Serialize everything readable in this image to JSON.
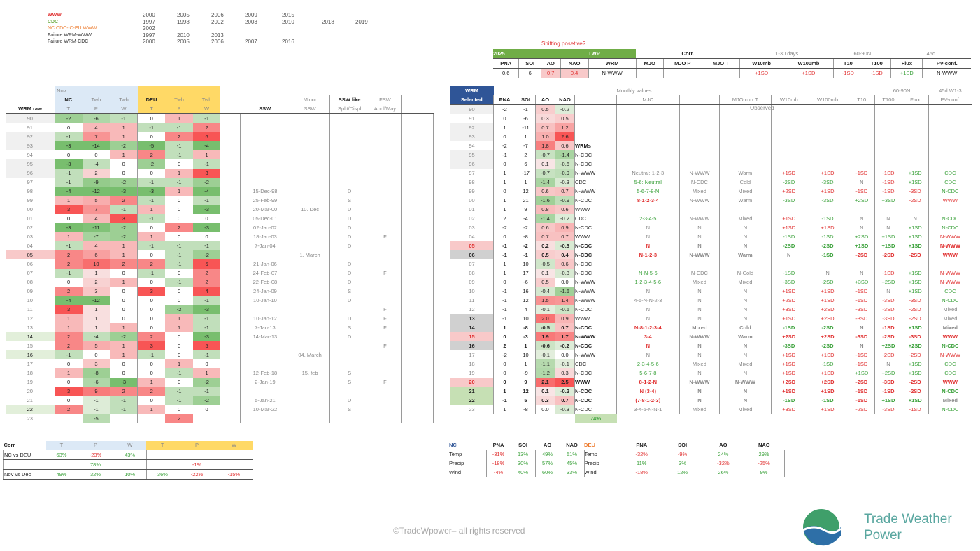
{
  "legend": {
    "rows": [
      {
        "label": "WWW",
        "color": "#e03030",
        "years": [
          "2000",
          "2005",
          "2006",
          "2009",
          "2015",
          "",
          ""
        ]
      },
      {
        "label": "CDC",
        "color": "#70ad47",
        "years": [
          "1997",
          "1998",
          "2002",
          "2003",
          "2010",
          "2018",
          "2019"
        ]
      },
      {
        "label": "NC CDC- C-EU WWW",
        "color": "#ed7d31",
        "years": [
          "2002",
          "",
          "",
          "",
          "",
          "",
          ""
        ]
      },
      {
        "label": "Failure WRM-WWW",
        "color": "#333333",
        "years": [
          "1997",
          "2010",
          "2013",
          "",
          "",
          "",
          ""
        ]
      },
      {
        "label": "Failure WRM-CDC",
        "color": "#333333",
        "years": [
          "2000",
          "2005",
          "2006",
          "2007",
          "2016",
          "",
          ""
        ]
      }
    ]
  },
  "shifting": "Shifting posetive?",
  "summary": {
    "year": "2025",
    "twp": "TWP",
    "corr": "Corr.",
    "days": "1-30 days",
    "lat": "60-90N",
    "d45": "45d",
    "headers": [
      "PNA",
      "SOI",
      "AO",
      "NAO",
      "WRM",
      "MJO",
      "MJO P",
      "MJO T",
      "W10mb",
      "W100mb",
      "T10",
      "T100",
      "Flux",
      "PV-conf."
    ],
    "values": [
      "0.6",
      "6",
      "0.7",
      "0.4",
      "N-WWW",
      "",
      "",
      "",
      "+1SD",
      "+1SD",
      "-1SD",
      "-1SD",
      "+1SD",
      "N-WWW"
    ]
  },
  "left": {
    "group_nov": "Nov",
    "headers": {
      "wrm_raw": "WRM raw",
      "nc": "NC",
      "twh": "Twh",
      "deu": "DEU",
      "t": "T",
      "p": "P",
      "w": "W",
      "ssw": "SSW",
      "minor": "Minor",
      "minor2": "SSW",
      "sswlike": "SSW like",
      "sswlike2": "Split/Displ",
      "fsw": "FSW",
      "fsw2": "April/May"
    },
    "rows": [
      [
        "90",
        "-2",
        "-6",
        "-1",
        "0",
        "1",
        "-1",
        "",
        "",
        "",
        ""
      ],
      [
        "91",
        "0",
        "4",
        "1",
        "-1",
        "-1",
        "2",
        "",
        "",
        "",
        ""
      ],
      [
        "92",
        "-1",
        "7",
        "1",
        "0",
        "2",
        "6",
        "",
        "",
        "",
        ""
      ],
      [
        "93",
        "-3",
        "-14",
        "-2",
        "-5",
        "-1",
        "-4",
        "",
        "",
        "",
        ""
      ],
      [
        "94",
        "0",
        "0",
        "1",
        "2",
        "-1",
        "1",
        "",
        "",
        "",
        ""
      ],
      [
        "95",
        "-3",
        "-4",
        "0",
        "-2",
        "0",
        "-1",
        "",
        "",
        "",
        ""
      ],
      [
        "96",
        "-1",
        "2",
        "0",
        "0",
        "1",
        "3",
        "",
        "",
        "",
        ""
      ],
      [
        "97",
        "-1",
        "-9",
        "-2",
        "-1",
        "-1",
        "-2",
        "",
        "",
        "",
        ""
      ],
      [
        "98",
        "-4",
        "-12",
        "-3",
        "-3",
        "1",
        "-4",
        "15-Dec-98",
        "",
        "D",
        ""
      ],
      [
        "99",
        "1",
        "5",
        "2",
        "-1",
        "0",
        "-1",
        "25-Feb-99",
        "",
        "S",
        ""
      ],
      [
        "00",
        "3",
        "7",
        "-1",
        "1",
        "0",
        "-3",
        "20-Mar-00",
        "10. Dec",
        "D",
        ""
      ],
      [
        "01",
        "0",
        "4",
        "3",
        "-1",
        "0",
        "0",
        "05-Dec-01",
        "",
        "D",
        ""
      ],
      [
        "02",
        "-3",
        "-11",
        "-2",
        "0",
        "2",
        "-3",
        "02-Jan-02",
        "",
        "D",
        ""
      ],
      [
        "03",
        "1",
        "-7",
        "-2",
        "1",
        "0",
        "0",
        "18-Jan-03",
        "",
        "D",
        "F"
      ],
      [
        "04",
        "-1",
        "4",
        "1",
        "-1",
        "-1",
        "-1",
        "7-Jan-04",
        "",
        "D",
        ""
      ],
      [
        "05",
        "2",
        "6",
        "1",
        "0",
        "-1",
        "-2",
        "",
        "1. March",
        "",
        ""
      ],
      [
        "06",
        "2",
        "10",
        "2",
        "2",
        "-1",
        "5",
        "21-Jan-06",
        "",
        "D",
        ""
      ],
      [
        "07",
        "-1",
        "1",
        "0",
        "-1",
        "0",
        "2",
        "24-Feb-07",
        "",
        "D",
        "F"
      ],
      [
        "08",
        "0",
        "2",
        "1",
        "0",
        "-1",
        "2",
        "22-Feb-08",
        "",
        "D",
        ""
      ],
      [
        "09",
        "2",
        "3",
        "0",
        "3",
        "0",
        "4",
        "24-Jan-09",
        "",
        "S",
        ""
      ],
      [
        "10",
        "-4",
        "-12",
        "0",
        "0",
        "0",
        "-1",
        "10-Jan-10",
        "",
        "D",
        ""
      ],
      [
        "11",
        "3",
        "1",
        "0",
        "0",
        "-2",
        "-3",
        "",
        "",
        "",
        "F"
      ],
      [
        "12",
        "1",
        "1",
        "0",
        "0",
        "1",
        "-1",
        "10-Jan-12",
        "",
        "D",
        "F"
      ],
      [
        "13",
        "1",
        "1",
        "1",
        "0",
        "1",
        "-1",
        "7-Jan-13",
        "",
        "S",
        "F"
      ],
      [
        "14",
        "2",
        "-4",
        "-2",
        "2",
        "0",
        "-3",
        "14-Mar-13",
        "",
        "D",
        ""
      ],
      [
        "15",
        "2",
        "5",
        "1",
        "3",
        "0",
        "5",
        "",
        "",
        "",
        "F"
      ],
      [
        "16",
        "-1",
        "0",
        "1",
        "-1",
        "0",
        "-1",
        "",
        "04. March",
        "",
        ""
      ],
      [
        "17",
        "0",
        "3",
        "0",
        "0",
        "1",
        "0",
        "",
        "",
        "",
        ""
      ],
      [
        "18",
        "1",
        "-8",
        "0",
        "0",
        "-1",
        "1",
        "12-Feb-18",
        "15. feb",
        "S",
        ""
      ],
      [
        "19",
        "0",
        "-6",
        "-3",
        "1",
        "0",
        "-2",
        "2-Jan-19",
        "",
        "S",
        "F"
      ],
      [
        "20",
        "3",
        "9",
        "2",
        "2",
        "-1",
        "-1",
        "",
        "",
        "",
        ""
      ],
      [
        "21",
        "0",
        "-1",
        "-1",
        "0",
        "-1",
        "-2",
        "5-Jan-21",
        "",
        "D",
        ""
      ],
      [
        "22",
        "2",
        "-1",
        "-1",
        "1",
        "0",
        "0",
        "10-Mar-22",
        "",
        "S",
        ""
      ],
      [
        "23",
        "",
        "-5",
        "",
        "",
        "2",
        "",
        "",
        "",
        "",
        ""
      ]
    ]
  },
  "right": {
    "headers": {
      "wrm": "WRM",
      "selected": "Selected",
      "pna": "PNA",
      "soi": "SOI",
      "ao": "AO",
      "nao": "NAO",
      "monthly": "Monthly values",
      "mjo": "MJO",
      "mjocorr": "MJO corr T",
      "w10": "W10mb",
      "w100": "W100mb",
      "t10": "T10",
      "t100": "T100",
      "flux": "Flux",
      "pv": "PV-conf.",
      "lat": "60-90N",
      "w13": "45d W1-3",
      "observed": "Observed"
    },
    "wrms_label": "WRMs",
    "pct": "74%",
    "rows": [
      [
        "90",
        "-2",
        "-1",
        "0.5",
        "-0.2",
        "",
        "",
        "",
        "",
        "",
        "",
        "",
        "",
        "",
        "",
        ""
      ],
      [
        "91",
        "0",
        "-6",
        "0.3",
        "0.5",
        "",
        "",
        "",
        "",
        "",
        "",
        "",
        "",
        "",
        "",
        ""
      ],
      [
        "92",
        "1",
        "-11",
        "0.7",
        "1.2",
        "",
        "",
        "",
        "",
        "",
        "",
        "",
        "",
        "",
        "",
        ""
      ],
      [
        "93",
        "0",
        "1",
        "1.0",
        "2.6",
        "",
        "",
        "",
        "",
        "",
        "",
        "",
        "",
        "",
        "",
        ""
      ],
      [
        "94",
        "-2",
        "-7",
        "1.8",
        "0.6",
        "",
        "",
        "",
        "",
        "",
        "",
        "",
        "",
        "",
        "",
        ""
      ],
      [
        "95",
        "-1",
        "2",
        "-0.7",
        "-1.4",
        "N-CDC",
        "",
        "",
        "",
        "",
        "",
        "",
        "",
        "",
        "",
        ""
      ],
      [
        "96",
        "0",
        "6",
        "0.1",
        "-0.6",
        "N-CDC",
        "",
        "",
        "",
        "",
        "",
        "",
        "",
        "",
        "",
        ""
      ],
      [
        "97",
        "1",
        "-17",
        "-0.7",
        "-0.9",
        "N-WWW",
        "Neutral: 1-2-3",
        "N-WWW",
        "Warm",
        "+1SD",
        "+1SD",
        "-1SD",
        "-1SD",
        "+1SD",
        "CDC",
        ""
      ],
      [
        "98",
        "1",
        "1",
        "-1.4",
        "-0.3",
        "CDC",
        "5-6: Neutral",
        "N-CDC",
        "Cold",
        "-2SD",
        "-3SD",
        "N",
        "-1SD",
        "+1SD",
        "CDC",
        ""
      ],
      [
        "99",
        "0",
        "12",
        "0.6",
        "0.7",
        "N-WWW",
        "5-6-7-8-N",
        "Mixed",
        "Mixed",
        "+2SD",
        "+1SD",
        "-1SD",
        "-1SD",
        "-3SD",
        "N-CDC",
        ""
      ],
      [
        "00",
        "1",
        "21",
        "-1.6",
        "-0.9",
        "N-CDC",
        "8-1-2-3-4",
        "N-WWW",
        "Warm",
        "-3SD",
        "-3SD",
        "+2SD",
        "+3SD",
        "-2SD",
        "WWW",
        ""
      ],
      [
        "01",
        "1",
        "9",
        "0.8",
        "0.6",
        "WWW",
        "",
        "",
        "",
        "",
        "",
        "",
        "",
        "",
        "",
        ""
      ],
      [
        "02",
        "2",
        "-4",
        "-1.4",
        "-0.2",
        "CDC",
        "2-3-4-5",
        "N-WWW",
        "Mixed",
        "+1SD",
        "-1SD",
        "N",
        "N",
        "N",
        "N-CDC",
        ""
      ],
      [
        "03",
        "-2",
        "-2",
        "0.6",
        "0.9",
        "N-CDC",
        "N",
        "N",
        "N",
        "+1SD",
        "+1SD",
        "N",
        "N",
        "+1SD",
        "N-CDC",
        ""
      ],
      [
        "04",
        "0",
        "-8",
        "0.7",
        "0.7",
        "WWW",
        "N",
        "N",
        "N",
        "-1SD",
        "-1SD",
        "+2SD",
        "+1SD",
        "+1SD",
        "N-WWW",
        ""
      ],
      [
        "05",
        "-1",
        "-2",
        "0.2",
        "-0.3",
        "N-CDC",
        "N",
        "N",
        "N",
        "-2SD",
        "-2SD",
        "+1SD",
        "+1SD",
        "+1SD",
        "N-WWW",
        ""
      ],
      [
        "06",
        "-1",
        "-1",
        "0.5",
        "0.4",
        "N-CDC",
        "N-1-2-3",
        "N-WWW",
        "Warm",
        "N",
        "-1SD",
        "-2SD",
        "-2SD",
        "-2SD",
        "WWW",
        ""
      ],
      [
        "07",
        "1",
        "10",
        "-0.5",
        "0.6",
        "N-CDC",
        "",
        "",
        "",
        "",
        "",
        "",
        "",
        "",
        "",
        ""
      ],
      [
        "08",
        "1",
        "17",
        "0.1",
        "-0.3",
        "N-CDC",
        "N-N-5-6",
        "N-CDC",
        "N-Cold",
        "-1SD",
        "N",
        "N",
        "-1SD",
        "+1SD",
        "N-WWW",
        ""
      ],
      [
        "09",
        "0",
        "-6",
        "0.5",
        "0.0",
        "N-WWW",
        "1-2-3-4-5-6",
        "Mixed",
        "Mixed",
        "-3SD",
        "-2SD",
        "+3SD",
        "+2SD",
        "+1SD",
        "N-WWW",
        ""
      ],
      [
        "10",
        "-1",
        "16",
        "-0.4",
        "-1.6",
        "N-WWW",
        "N",
        "N",
        "N",
        "+1SD",
        "+1SD",
        "-1SD",
        "N",
        "+1SD",
        "CDC",
        ""
      ],
      [
        "11",
        "-1",
        "12",
        "1.5",
        "1.4",
        "N-WWW",
        "4-5-N-N-2-3",
        "N",
        "N",
        "+2SD",
        "+1SD",
        "-1SD",
        "-3SD",
        "-3SD",
        "N-CDC",
        ""
      ],
      [
        "12",
        "-1",
        "4",
        "-0.1",
        "-0.6",
        "N-CDC",
        "N",
        "N",
        "N",
        "+3SD",
        "+2SD",
        "-3SD",
        "-3SD",
        "-2SD",
        "Mixed",
        ""
      ],
      [
        "13",
        "-1",
        "10",
        "2.0",
        "0.9",
        "WWW",
        "N",
        "N",
        "N",
        "+1SD",
        "+2SD",
        "-3SD",
        "-3SD",
        "-2SD",
        "Mixed",
        ""
      ],
      [
        "14",
        "1",
        "-8",
        "-0.5",
        "0.7",
        "N-CDC",
        "N-8-1-2-3-4",
        "Mixed",
        "Cold",
        "-1SD",
        "-2SD",
        "N",
        "-1SD",
        "+1SD",
        "Mixed",
        ""
      ],
      [
        "15",
        "0",
        "-3",
        "1.9",
        "1.7",
        "N-WWW",
        "3-4",
        "N-WWW",
        "Warm",
        "+2SD",
        "+2SD",
        "-3SD",
        "-2SD",
        "-3SD",
        "WWW",
        ""
      ],
      [
        "16",
        "2",
        "1",
        "-0.6",
        "-0.2",
        "N-CDC",
        "N",
        "N",
        "N",
        "-3SD",
        "-2SD",
        "N",
        "+2SD",
        "+2SD",
        "N-CDC",
        ""
      ],
      [
        "17",
        "-2",
        "10",
        "-0.1",
        "0.0",
        "N-WWW",
        "N",
        "N",
        "N",
        "+1SD",
        "+1SD",
        "-1SD",
        "-2SD",
        "-2SD",
        "N-WWW",
        ""
      ],
      [
        "18",
        "0",
        "1",
        "-1.1",
        "-0.1",
        "CDC",
        "2-3-4-5-6",
        "Mixed",
        "Mixed",
        "+1SD",
        "-1SD",
        "-1SD",
        "N",
        "+1SD",
        "CDC",
        ""
      ],
      [
        "19",
        "0",
        "-9",
        "-1.2",
        "0.3",
        "N-CDC",
        "5-6-7-8",
        "N",
        "N",
        "+1SD",
        "+1SD",
        "+1SD",
        "+2SD",
        "+1SD",
        "CDC",
        ""
      ],
      [
        "20",
        "0",
        "9",
        "2.1",
        "2.5",
        "WWW",
        "8-1-2-N",
        "N-WWW",
        "N-WWW",
        "+2SD",
        "+2SD",
        "-2SD",
        "-3SD",
        "-2SD",
        "WWW",
        ""
      ],
      [
        "21",
        "1",
        "12",
        "0.1",
        "-0.2",
        "N-CDC",
        "N (3-4)",
        "N",
        "N",
        "+1SD",
        "+1SD",
        "-1SD",
        "-1SD",
        "-2SD",
        "N-CDC",
        ""
      ],
      [
        "22",
        "-1",
        "5",
        "0.3",
        "0.7",
        "N-CDC",
        "(7-8-1-2-3)",
        "N",
        "N",
        "-1SD",
        "-1SD",
        "-1SD",
        "+1SD",
        "+1SD",
        "Mixed",
        ""
      ],
      [
        "23",
        "1",
        "-8",
        "0.0",
        "-0.3",
        "N-CDC",
        "3-4-5-N-N-1",
        "Mixed",
        "Mixed",
        "+3SD",
        "+1SD",
        "-2SD",
        "-3SD",
        "-1SD",
        "N-CDC",
        ""
      ]
    ]
  },
  "corr": {
    "label": "Corr",
    "headers": [
      "T",
      "P",
      "W",
      "T",
      "P",
      "W"
    ],
    "rows": [
      {
        "label": "NC vs DEU",
        "vals": [
          "63%",
          "-23%",
          "43%",
          "",
          "",
          ""
        ]
      },
      {
        "label": "",
        "vals": [
          "",
          "78%",
          "",
          "",
          "-1%",
          ""
        ]
      },
      {
        "label": "Nov vs Dec",
        "vals": [
          "49%",
          "32%",
          "10%",
          "36%",
          "-22%",
          "-15%"
        ]
      }
    ]
  },
  "nc_deu": {
    "nc_label": "NC",
    "deu_label": "DEU",
    "headers": [
      "PNA",
      "SOI",
      "AO",
      "NAO"
    ],
    "rows": [
      {
        "label": "Temp",
        "nc": [
          "-31%",
          "13%",
          "49%",
          "51%"
        ],
        "deu": [
          "-32%",
          "-9%",
          "24%",
          "29%"
        ]
      },
      {
        "label": "Precip",
        "nc": [
          "-18%",
          "30%",
          "57%",
          "45%"
        ],
        "deu": [
          "11%",
          "3%",
          "-32%",
          "-25%"
        ]
      },
      {
        "label": "Wind",
        "nc": [
          "-4%",
          "40%",
          "60%",
          "33%"
        ],
        "deu": [
          "-18%",
          "12%",
          "26%",
          "9%"
        ]
      }
    ]
  },
  "footer": {
    "copyright": "©TradeWpower– all rights reserved",
    "logo_line1": "Trade Weather",
    "logo_line2": "Power"
  }
}
